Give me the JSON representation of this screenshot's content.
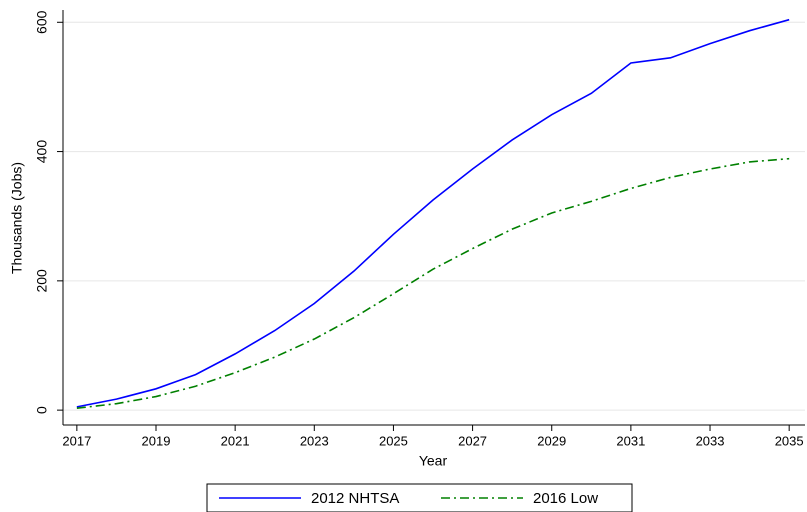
{
  "chart_data": {
    "type": "line",
    "x_label": "Year",
    "y_label": "Thousands (Jobs)",
    "x": [
      2017,
      2018,
      2019,
      2020,
      2021,
      2022,
      2023,
      2024,
      2025,
      2026,
      2027,
      2028,
      2029,
      2030,
      2031,
      2032,
      2033,
      2034,
      2035
    ],
    "series": [
      {
        "name": "2012 NHTSA",
        "color": "#0000ff",
        "dash": "solid",
        "values": [
          5,
          17,
          33,
          55,
          87,
          123,
          165,
          215,
          272,
          325,
          373,
          418,
          457,
          490,
          537,
          545,
          567,
          587,
          604
        ]
      },
      {
        "name": "2016 Low",
        "color": "#008000",
        "dash": "dashdot",
        "values": [
          3,
          10,
          21,
          37,
          58,
          82,
          110,
          143,
          180,
          218,
          250,
          280,
          305,
          323,
          343,
          360,
          373,
          384,
          389
        ]
      }
    ],
    "xlim": [
      2016.65,
      2035.4
    ],
    "ylim": [
      -23,
      619
    ],
    "xticks": [
      2017,
      2019,
      2021,
      2023,
      2025,
      2027,
      2029,
      2031,
      2033,
      2035
    ],
    "yticks": [
      0,
      200,
      400,
      600
    ],
    "grid": true,
    "legend": "bottom"
  }
}
